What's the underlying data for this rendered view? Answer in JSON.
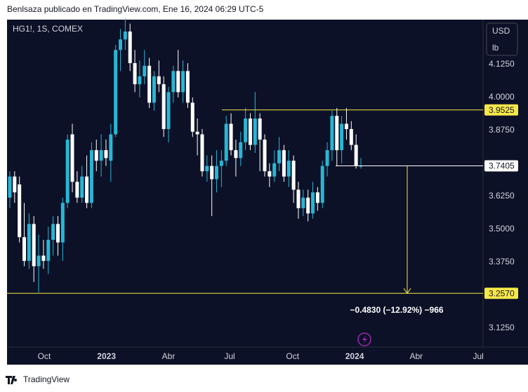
{
  "header": {
    "text": "Benlsaza publicado en TradingView.com, Ene 16, 2024 06:29 UTC-5"
  },
  "footer": {
    "brand": "TradingView"
  },
  "chart_data": {
    "type": "candlestick",
    "symbol": "HG1!, 1S, COMEX",
    "currency": "USD",
    "unit": "lb",
    "up_color": "#29b6d4",
    "down_color": "#ffffff",
    "grid": false,
    "ylim": [
      3.053,
      4.295
    ],
    "yticks": [
      {
        "value": 3.125,
        "label": "3.1250"
      },
      {
        "value": 3.375,
        "label": "3.3750"
      },
      {
        "value": 3.5,
        "label": "3.5000"
      },
      {
        "value": 3.625,
        "label": "3.6250"
      },
      {
        "value": 3.875,
        "label": "3.8750"
      },
      {
        "value": 4,
        "label": "4.0000"
      },
      {
        "value": 4.125,
        "label": "4.1250"
      }
    ],
    "xlim": [
      -0.58,
      98.4
    ],
    "xticks": [
      {
        "value": 7.15,
        "label": "Oct"
      },
      {
        "value": 20.1,
        "label": "2023"
      },
      {
        "value": 33,
        "label": "Abr"
      },
      {
        "value": 45.7,
        "label": "Jul"
      },
      {
        "value": 58.8,
        "label": "Oct"
      },
      {
        "value": 71.7,
        "label": "2024"
      },
      {
        "value": 84.5,
        "label": "Abr"
      },
      {
        "value": 97.4,
        "label": "Jul"
      }
    ],
    "ohlc": [
      [
        3.62,
        3.72,
        3.58,
        3.7
      ],
      [
        3.7,
        3.72,
        3.6,
        3.64
      ],
      [
        3.67,
        3.7,
        3.45,
        3.47
      ],
      [
        3.47,
        3.6,
        3.36,
        3.38
      ],
      [
        3.38,
        3.56,
        3.35,
        3.52
      ],
      [
        3.52,
        3.55,
        3.3,
        3.36
      ],
      [
        3.36,
        3.48,
        3.26,
        3.4
      ],
      [
        3.4,
        3.46,
        3.35,
        3.38
      ],
      [
        3.38,
        3.51,
        3.33,
        3.46
      ],
      [
        3.46,
        3.55,
        3.4,
        3.52
      ],
      [
        3.52,
        3.55,
        3.4,
        3.45
      ],
      [
        3.45,
        3.62,
        3.38,
        3.6
      ],
      [
        3.6,
        3.86,
        3.58,
        3.84
      ],
      [
        3.86,
        3.9,
        3.64,
        3.68
      ],
      [
        3.68,
        3.72,
        3.6,
        3.62
      ],
      [
        3.62,
        3.74,
        3.6,
        3.7
      ],
      [
        3.7,
        3.78,
        3.58,
        3.6
      ],
      [
        3.6,
        3.83,
        3.58,
        3.8
      ],
      [
        3.8,
        3.84,
        3.72,
        3.76
      ],
      [
        3.76,
        3.86,
        3.7,
        3.8
      ],
      [
        3.8,
        3.84,
        3.74,
        3.77
      ],
      [
        3.76,
        3.9,
        3.68,
        3.86
      ],
      [
        3.86,
        4.2,
        3.85,
        4.18
      ],
      [
        4.18,
        4.26,
        4.1,
        4.22
      ],
      [
        4.22,
        4.3,
        4.18,
        4.25
      ],
      [
        4.25,
        4.28,
        4.1,
        4.13
      ],
      [
        4.13,
        4.18,
        4.02,
        4.05
      ],
      [
        4.05,
        4.14,
        4.0,
        4.08
      ],
      [
        4.08,
        4.18,
        4.05,
        4.12
      ],
      [
        4.12,
        4.15,
        3.96,
        3.98
      ],
      [
        3.98,
        4.1,
        3.95,
        4.08
      ],
      [
        4.08,
        4.14,
        4.02,
        4.05
      ],
      [
        4.05,
        4.08,
        3.85,
        3.88
      ],
      [
        3.88,
        4.04,
        3.83,
        4.02
      ],
      [
        4.02,
        4.12,
        3.98,
        4.1
      ],
      [
        4.1,
        4.18,
        4.0,
        4.02
      ],
      [
        4.02,
        4.14,
        3.98,
        4.1
      ],
      [
        4.1,
        4.13,
        3.96,
        3.98
      ],
      [
        3.98,
        4.0,
        3.85,
        3.87
      ],
      [
        3.87,
        3.92,
        3.78,
        3.86
      ],
      [
        3.86,
        3.88,
        3.7,
        3.72
      ],
      [
        3.72,
        3.78,
        3.68,
        3.74
      ],
      [
        3.74,
        3.78,
        3.55,
        3.69
      ],
      [
        3.69,
        3.8,
        3.64,
        3.74
      ],
      [
        3.74,
        3.8,
        3.66,
        3.76
      ],
      [
        3.76,
        3.93,
        3.74,
        3.9
      ],
      [
        3.9,
        3.94,
        3.78,
        3.8
      ],
      [
        3.8,
        3.84,
        3.7,
        3.77
      ],
      [
        3.77,
        3.87,
        3.74,
        3.83
      ],
      [
        3.83,
        3.96,
        3.8,
        3.92
      ],
      [
        3.92,
        3.94,
        3.8,
        3.82
      ],
      [
        3.82,
        4.02,
        3.79,
        3.92
      ],
      [
        3.92,
        3.94,
        3.72,
        3.84
      ],
      [
        3.84,
        3.86,
        3.7,
        3.72
      ],
      [
        3.72,
        3.75,
        3.66,
        3.7
      ],
      [
        3.7,
        3.8,
        3.68,
        3.75
      ],
      [
        3.75,
        3.85,
        3.72,
        3.8
      ],
      [
        3.8,
        3.82,
        3.68,
        3.7
      ],
      [
        3.7,
        3.8,
        3.66,
        3.76
      ],
      [
        3.76,
        3.78,
        3.6,
        3.65
      ],
      [
        3.65,
        3.68,
        3.54,
        3.58
      ],
      [
        3.58,
        3.65,
        3.55,
        3.62
      ],
      [
        3.62,
        3.65,
        3.53,
        3.56
      ],
      [
        3.56,
        3.68,
        3.54,
        3.64
      ],
      [
        3.64,
        3.66,
        3.57,
        3.6
      ],
      [
        3.6,
        3.76,
        3.58,
        3.74
      ],
      [
        3.74,
        3.83,
        3.7,
        3.8
      ],
      [
        3.8,
        3.95,
        3.76,
        3.93
      ],
      [
        3.93,
        3.96,
        3.74,
        3.8
      ],
      [
        3.8,
        3.93,
        3.75,
        3.9
      ],
      [
        3.9,
        3.96,
        3.84,
        3.88
      ],
      [
        3.88,
        3.91,
        3.8,
        3.82
      ],
      [
        3.82,
        3.86,
        3.73,
        3.74
      ],
      [
        3.74,
        3.77,
        3.73,
        3.7405
      ]
    ],
    "levels": [
      {
        "value": 3.9525,
        "color": "#f7e84a"
      },
      {
        "value": 3.7405,
        "color": "#ffffff"
      },
      {
        "value": {
          "value": 3.257,
          "label": "3.2570"
        },
        "color": "#f7e84a"
      }
    ],
    "annotation": "−0.4830 (−12.92%) −966"
  }
}
